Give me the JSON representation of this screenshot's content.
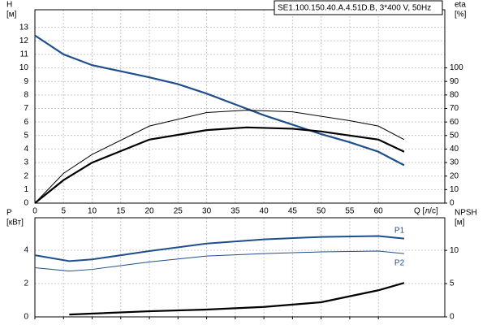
{
  "chart_data": [
    {
      "type": "line",
      "legend_text": "SE1.100.150.40.A.4.51D.B, 3*400 V, 50Hz",
      "xlabel": "Q [л/с]",
      "ylabel": [
        "H",
        "[м]"
      ],
      "y2label": [
        "eta",
        "[%]"
      ],
      "xlim": [
        0,
        71.6
      ],
      "xticks": [
        0,
        5,
        10,
        15,
        20,
        25,
        30,
        35,
        40,
        45,
        50,
        55,
        60
      ],
      "ylim": [
        0,
        14.3
      ],
      "yticks": [
        0,
        1,
        2,
        3,
        4,
        5,
        6,
        7,
        8,
        9,
        10,
        11,
        12,
        13
      ],
      "y2lim": [
        0,
        143
      ],
      "y2ticks": [
        0,
        10,
        20,
        30,
        40,
        50,
        60,
        70,
        80,
        90,
        100
      ],
      "grid": true,
      "series": [
        {
          "color": "#1f4e8c",
          "linewidth": 2.2,
          "x": [
            0,
            5,
            10,
            15,
            20,
            25,
            30,
            35,
            40,
            45,
            50,
            55,
            60,
            64.5
          ],
          "values": [
            12.4,
            11.0,
            10.2,
            9.75,
            9.3,
            8.8,
            8.1,
            7.3,
            6.5,
            5.8,
            5.1,
            4.5,
            3.8,
            2.8
          ]
        },
        {
          "color": "#000000",
          "linewidth": 1,
          "axis": "y2",
          "x": [
            0,
            5,
            10,
            20,
            30,
            37,
            45,
            55,
            60,
            64.5
          ],
          "values": [
            0,
            22,
            36,
            57,
            67,
            68.7,
            67.5,
            61,
            57,
            47
          ]
        },
        {
          "color": "#000000",
          "linewidth": 2.2,
          "axis": "y2",
          "x": [
            0,
            5,
            10,
            20,
            30,
            37,
            45,
            50,
            55,
            60,
            64.5
          ],
          "values": [
            0,
            17,
            30,
            47,
            54,
            56,
            55,
            53,
            50,
            47,
            38
          ]
        }
      ]
    },
    {
      "type": "line",
      "ylabel": [
        "P",
        "[кВт]"
      ],
      "y2label": [
        "NPSH",
        "[м]"
      ],
      "xlim": [
        0,
        71.6
      ],
      "xticks": [
        0,
        5,
        10,
        15,
        20,
        25,
        30,
        35,
        40,
        45,
        50,
        55,
        60
      ],
      "ylim": [
        0,
        5.95
      ],
      "yticks": [
        0,
        2,
        4
      ],
      "y2lim": [
        0,
        14.9
      ],
      "y2ticks": [
        0,
        5,
        10
      ],
      "grid": true,
      "series": [
        {
          "name": "P1",
          "color": "#1f4e8c",
          "linewidth": 2,
          "x": [
            0,
            6,
            10,
            20,
            30,
            40,
            50,
            60,
            64.5
          ],
          "values": [
            3.7,
            3.35,
            3.45,
            3.95,
            4.4,
            4.65,
            4.8,
            4.85,
            4.7
          ]
        },
        {
          "name": "P2",
          "color": "#1f4e8c",
          "linewidth": 1,
          "x": [
            0,
            6,
            10,
            20,
            30,
            40,
            50,
            60,
            64.5
          ],
          "values": [
            2.95,
            2.75,
            2.85,
            3.3,
            3.65,
            3.8,
            3.9,
            3.95,
            3.8
          ]
        },
        {
          "color": "#000000",
          "linewidth": 2.2,
          "axis": "y2",
          "x": [
            6,
            20,
            30,
            40,
            50,
            60,
            64.5
          ],
          "values": [
            0.35,
            0.85,
            1.1,
            1.5,
            2.2,
            4.0,
            5.1
          ]
        }
      ]
    }
  ]
}
